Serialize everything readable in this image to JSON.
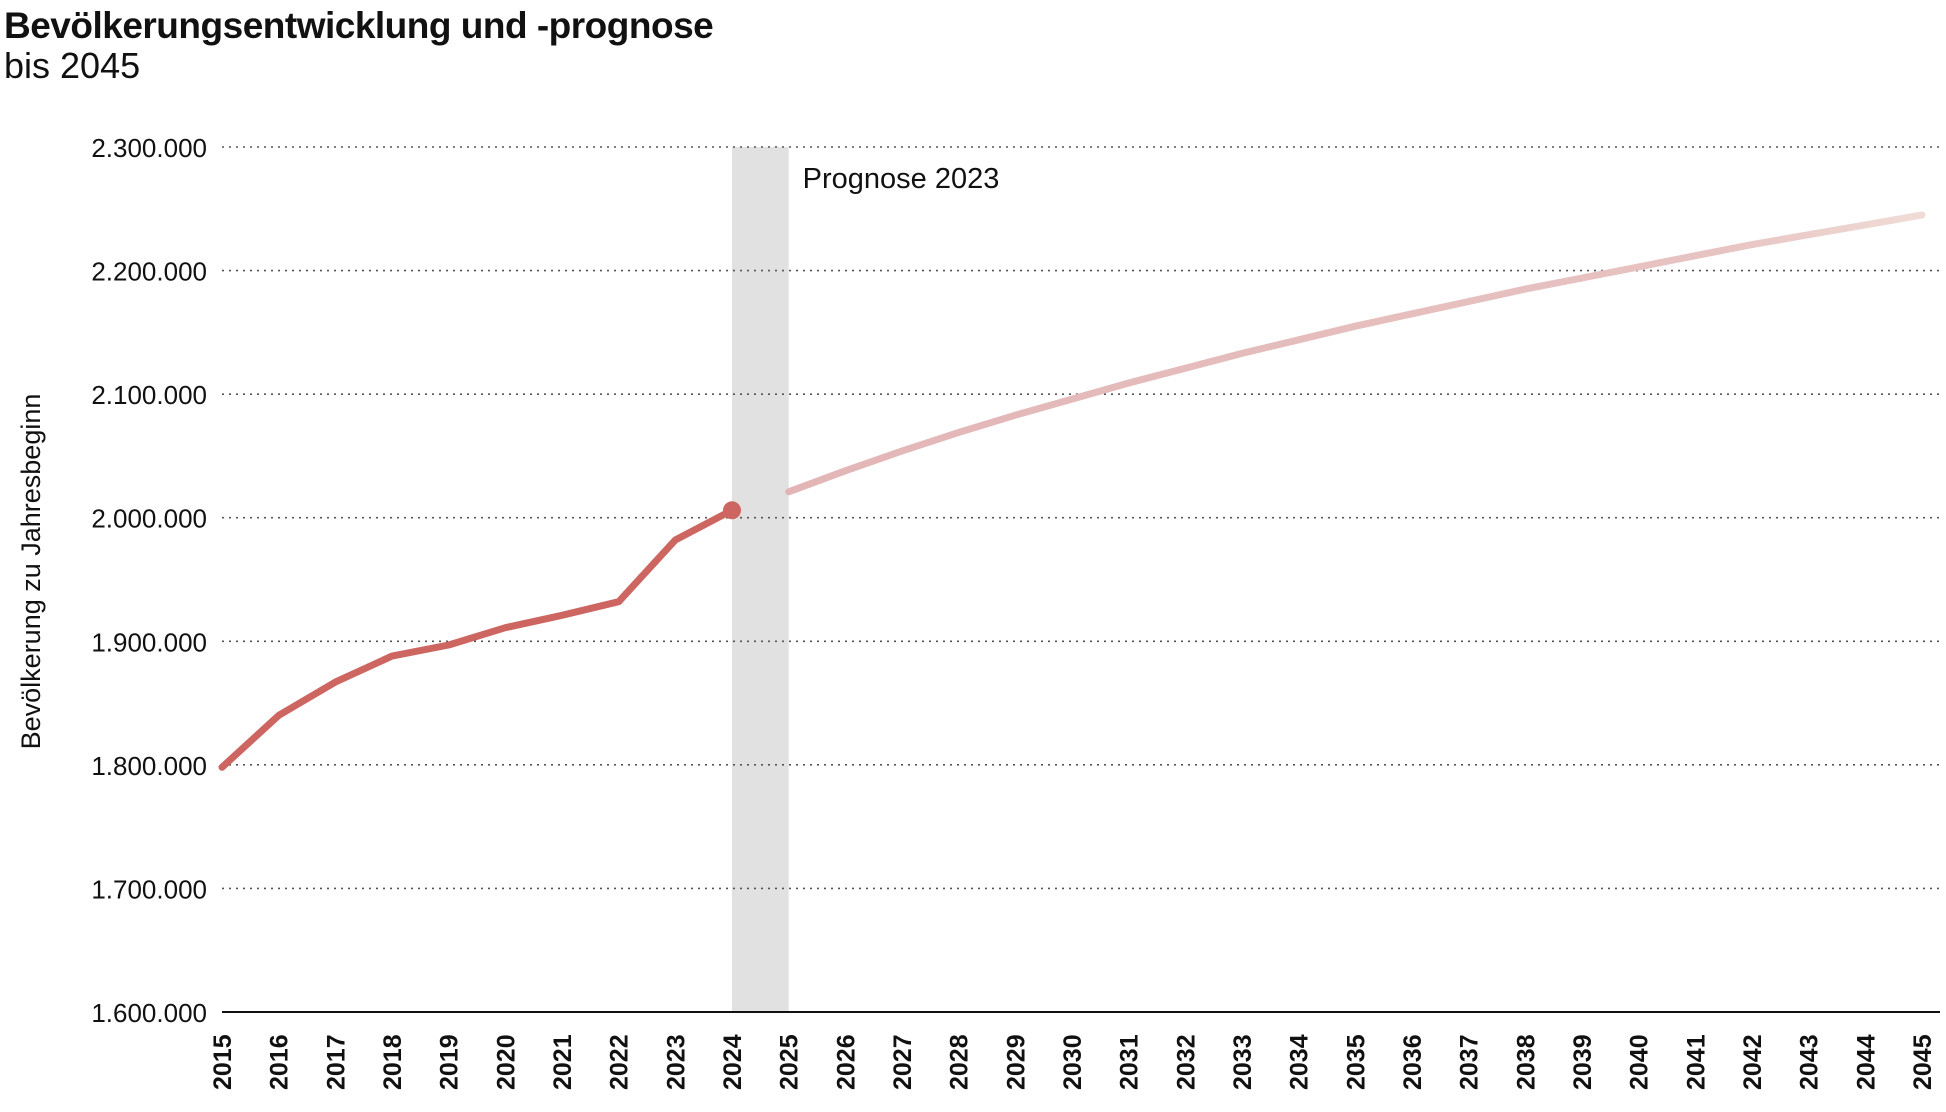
{
  "chart_data": {
    "type": "line",
    "title": "Bevölkerungsentwicklung und -prognose",
    "subtitle": "bis 2045",
    "ylabel": "Bevölkerung zu Jahresbeginn",
    "xlabel": "",
    "ylim": [
      1600000,
      2300000
    ],
    "y_ticks": [
      1600000,
      1700000,
      1800000,
      1900000,
      2000000,
      2100000,
      2200000,
      2300000
    ],
    "y_tick_labels": [
      "1.600.000",
      "1.700.000",
      "1.800.000",
      "1.900.000",
      "2.000.000",
      "2.100.000",
      "2.200.000",
      "2.300.000"
    ],
    "x_ticks": [
      2015,
      2016,
      2017,
      2018,
      2019,
      2020,
      2021,
      2022,
      2023,
      2024,
      2025,
      2026,
      2027,
      2028,
      2029,
      2030,
      2031,
      2032,
      2033,
      2034,
      2035,
      2036,
      2037,
      2038,
      2039,
      2040,
      2041,
      2042,
      2043,
      2044,
      2045
    ],
    "grid": "horizontal dotted",
    "shaded_band": {
      "from": 2024,
      "to": 2025,
      "color": "#e2e1e2"
    },
    "annotation": "Prognose 2023",
    "series": [
      {
        "kind": "actual",
        "color": "#cd6661",
        "x": [
          2015,
          2016,
          2017,
          2018,
          2019,
          2020,
          2021,
          2022,
          2023,
          2024
        ],
        "values": [
          1798000,
          1840000,
          1867000,
          1888000,
          1897000,
          1911000,
          1921000,
          1932000,
          1982000,
          2006000
        ]
      },
      {
        "kind": "forecast",
        "color_start": "#e3b5b6",
        "color_end": "#f0dcd6",
        "x": [
          2025,
          2026,
          2027,
          2028,
          2029,
          2030,
          2031,
          2032,
          2033,
          2034,
          2035,
          2036,
          2037,
          2038,
          2039,
          2040,
          2041,
          2042,
          2043,
          2044,
          2045
        ],
        "values": [
          2021000,
          2038000,
          2054000,
          2069000,
          2083000,
          2096000,
          2109000,
          2121000,
          2133000,
          2144000,
          2155000,
          2165000,
          2175000,
          2185000,
          2194000,
          2203000,
          2212000,
          2221000,
          2229000,
          2237000,
          2245000
        ]
      }
    ]
  }
}
